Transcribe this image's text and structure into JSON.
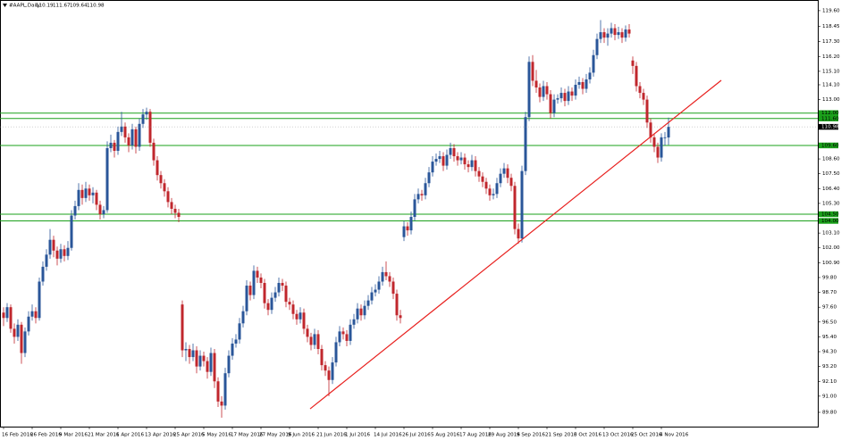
{
  "chart_data": {
    "type": "candlestick",
    "title": "#AAPL,Daily",
    "up_color": "#2a5699",
    "down_color": "#c0272d",
    "hline_color": "#1aa01a",
    "trendline_color": "#e8201e",
    "ylim": [
      88.74,
      120.39
    ],
    "yticks": [
      {
        "value": 119.6,
        "label": "119.60"
      },
      {
        "value": 118.45,
        "label": "118.45"
      },
      {
        "value": 117.3,
        "label": "117.30"
      },
      {
        "value": 116.2,
        "label": "116.20"
      },
      {
        "value": 115.1,
        "label": "115.10"
      },
      {
        "value": 114.1,
        "label": "114.10"
      },
      {
        "value": 113,
        "label": "113.00"
      },
      {
        "value": 108.6,
        "label": "108.60"
      },
      {
        "value": 107.5,
        "label": "107.50"
      },
      {
        "value": 106.4,
        "label": "106.40"
      },
      {
        "value": 105.3,
        "label": "105.30"
      },
      {
        "value": 103.1,
        "label": "103.10"
      },
      {
        "value": 102,
        "label": "102.00"
      },
      {
        "value": 100.9,
        "label": "100.90"
      },
      {
        "value": 99.8,
        "label": "99.80"
      },
      {
        "value": 98.7,
        "label": "98.70"
      },
      {
        "value": 97.6,
        "label": "97.60"
      },
      {
        "value": 96.5,
        "label": "96.50"
      },
      {
        "value": 95.4,
        "label": "95.40"
      },
      {
        "value": 94.3,
        "label": "94.30"
      },
      {
        "value": 93.2,
        "label": "93.20"
      },
      {
        "value": 92.1,
        "label": "92.10"
      },
      {
        "value": 91,
        "label": "91.00"
      },
      {
        "value": 89.8,
        "label": "89.80"
      }
    ],
    "hlines": [
      {
        "value": 112,
        "label": "112.00"
      },
      {
        "value": 111.6,
        "label": "111.60"
      },
      {
        "value": 109.6,
        "label": "109.60"
      },
      {
        "value": 104.5,
        "label": "104.50"
      },
      {
        "value": 104,
        "label": "104.00"
      }
    ],
    "current_price": {
      "value": 110.98,
      "label": "110.98"
    },
    "trendline": {
      "x": [
        85.75,
        200.75
      ],
      "y": [
        90.06,
        114.43
      ]
    },
    "xticks": [
      "16 Feb 2016",
      "26 Feb 2016",
      "9 Mar 2016",
      "21 Mar 2016",
      "1 Apr 2016",
      "13 Apr 2016",
      "25 Apr 2016",
      "5 May 2016",
      "17 May 2016",
      "27 May 2016",
      "9 Jun 2016",
      "21 Jun 2016",
      "1 Jul 2016",
      "14 Jul 2016",
      "26 Jul 2016",
      "5 Aug 2016",
      "17 Aug 2016",
      "29 Aug 2016",
      "9 Sep 2016",
      "21 Sep 2016",
      "3 Oct 2016",
      "13 Oct 2016",
      "25 Oct 2016",
      "4 Nov 2016"
    ],
    "candles": [
      [
        97.2,
        97.6,
        96.2,
        96.8
      ],
      [
        96.8,
        97.9,
        96.5,
        97.6
      ],
      [
        97.6,
        97.8,
        95.7,
        96.0
      ],
      [
        96.0,
        96.4,
        94.9,
        95.4
      ],
      [
        95.4,
        96.7,
        95.1,
        96.3
      ],
      [
        96.3,
        96.5,
        93.4,
        94.2
      ],
      [
        94.2,
        96.1,
        93.9,
        95.8
      ],
      [
        95.8,
        97.3,
        95.5,
        96.9
      ],
      [
        96.9,
        97.8,
        96.6,
        97.3
      ],
      [
        97.3,
        97.6,
        96.4,
        96.8
      ],
      [
        96.8,
        99.8,
        96.6,
        99.5
      ],
      [
        99.5,
        101.0,
        99.2,
        100.6
      ],
      [
        100.6,
        101.9,
        100.3,
        101.5
      ],
      [
        101.5,
        103.4,
        101.2,
        102.6
      ],
      [
        102.6,
        102.9,
        101.3,
        101.8
      ],
      [
        101.8,
        102.1,
        100.7,
        101.2
      ],
      [
        101.2,
        102.3,
        100.9,
        101.9
      ],
      [
        101.9,
        102.2,
        101.0,
        101.4
      ],
      [
        101.4,
        102.5,
        101.1,
        102.0
      ],
      [
        102.0,
        104.8,
        101.8,
        104.4
      ],
      [
        104.4,
        105.5,
        104.1,
        105.1
      ],
      [
        105.1,
        106.8,
        104.8,
        106.3
      ],
      [
        106.3,
        106.7,
        105.2,
        105.7
      ],
      [
        105.7,
        106.9,
        105.4,
        106.4
      ],
      [
        106.4,
        106.7,
        105.5,
        105.9
      ],
      [
        105.9,
        106.5,
        105.3,
        106.1
      ],
      [
        106.1,
        106.3,
        104.8,
        105.2
      ],
      [
        105.2,
        105.5,
        104.1,
        104.5
      ],
      [
        104.5,
        105.1,
        104.2,
        104.8
      ],
      [
        104.8,
        109.9,
        104.6,
        109.4
      ],
      [
        109.4,
        110.4,
        109.1,
        109.8
      ],
      [
        109.8,
        110.0,
        108.7,
        109.2
      ],
      [
        109.2,
        111.0,
        108.9,
        110.6
      ],
      [
        110.6,
        112.1,
        110.3,
        111.0
      ],
      [
        111.0,
        111.3,
        109.8,
        110.2
      ],
      [
        110.2,
        110.5,
        109.1,
        109.6
      ],
      [
        109.6,
        111.2,
        109.3,
        110.8
      ],
      [
        110.8,
        111.0,
        109.0,
        109.5
      ],
      [
        109.5,
        111.6,
        109.2,
        111.2
      ],
      [
        111.2,
        112.3,
        110.9,
        111.9
      ],
      [
        111.9,
        112.4,
        111.5,
        112.1
      ],
      [
        112.1,
        112.3,
        109.5,
        109.8
      ],
      [
        109.8,
        110.1,
        108.1,
        108.5
      ],
      [
        108.5,
        108.8,
        107.0,
        107.4
      ],
      [
        107.4,
        107.7,
        106.4,
        106.8
      ],
      [
        106.8,
        107.1,
        105.8,
        106.2
      ],
      [
        106.2,
        106.5,
        105.0,
        105.4
      ],
      [
        105.4,
        105.7,
        104.5,
        104.9
      ],
      [
        104.9,
        105.2,
        104.2,
        104.6
      ],
      [
        104.6,
        104.9,
        103.9,
        104.3
      ],
      [
        97.8,
        98.1,
        93.9,
        94.4
      ],
      [
        94.4,
        95.0,
        93.6,
        94.5
      ],
      [
        94.5,
        94.8,
        93.4,
        93.9
      ],
      [
        93.9,
        94.9,
        93.6,
        94.4
      ],
      [
        94.4,
        94.7,
        92.7,
        93.2
      ],
      [
        93.2,
        94.4,
        92.9,
        94.0
      ],
      [
        94.0,
        94.3,
        93.2,
        93.6
      ],
      [
        93.6,
        93.9,
        92.3,
        92.8
      ],
      [
        92.8,
        94.6,
        92.5,
        94.2
      ],
      [
        94.2,
        94.5,
        91.6,
        92.1
      ],
      [
        92.1,
        92.4,
        90.2,
        90.6
      ],
      [
        90.6,
        91.0,
        89.4,
        90.3
      ],
      [
        90.3,
        93.1,
        90.0,
        92.7
      ],
      [
        92.7,
        94.4,
        92.4,
        94.0
      ],
      [
        94.0,
        95.3,
        93.7,
        94.9
      ],
      [
        94.9,
        95.6,
        94.6,
        95.2
      ],
      [
        95.2,
        96.8,
        94.9,
        96.4
      ],
      [
        96.4,
        97.7,
        96.1,
        97.3
      ],
      [
        97.3,
        99.6,
        97.0,
        99.2
      ],
      [
        99.2,
        99.5,
        98.1,
        98.5
      ],
      [
        98.5,
        100.7,
        98.2,
        100.3
      ],
      [
        100.3,
        100.6,
        99.4,
        99.8
      ],
      [
        99.8,
        100.1,
        99.0,
        99.4
      ],
      [
        99.4,
        99.7,
        97.5,
        97.9
      ],
      [
        97.9,
        98.2,
        97.0,
        97.4
      ],
      [
        97.4,
        98.7,
        97.1,
        98.3
      ],
      [
        98.3,
        99.1,
        98.0,
        98.7
      ],
      [
        98.7,
        99.8,
        98.4,
        99.4
      ],
      [
        99.4,
        99.7,
        98.8,
        99.2
      ],
      [
        99.2,
        99.5,
        97.6,
        98.0
      ],
      [
        98.0,
        98.3,
        97.4,
        97.8
      ],
      [
        97.8,
        98.1,
        96.7,
        97.1
      ],
      [
        97.1,
        97.4,
        96.3,
        96.7
      ],
      [
        96.7,
        97.6,
        96.4,
        97.2
      ],
      [
        97.2,
        97.5,
        95.6,
        96.0
      ],
      [
        96.0,
        96.3,
        95.0,
        95.4
      ],
      [
        95.4,
        95.7,
        94.4,
        94.8
      ],
      [
        94.8,
        96.0,
        94.5,
        95.6
      ],
      [
        95.6,
        95.9,
        94.1,
        94.5
      ],
      [
        94.5,
        94.8,
        92.9,
        93.3
      ],
      [
        93.3,
        93.6,
        92.5,
        92.9
      ],
      [
        92.9,
        93.2,
        91.0,
        92.2
      ],
      [
        92.2,
        93.9,
        91.9,
        93.5
      ],
      [
        93.5,
        95.4,
        93.2,
        95.0
      ],
      [
        95.0,
        96.2,
        94.7,
        95.8
      ],
      [
        95.8,
        96.1,
        95.2,
        95.6
      ],
      [
        95.6,
        95.9,
        94.7,
        95.1
      ],
      [
        95.1,
        96.7,
        94.8,
        96.3
      ],
      [
        96.3,
        97.1,
        96.0,
        96.7
      ],
      [
        96.7,
        97.9,
        96.4,
        97.5
      ],
      [
        97.5,
        97.8,
        96.6,
        97.0
      ],
      [
        97.0,
        98.1,
        96.7,
        97.7
      ],
      [
        97.7,
        98.5,
        97.4,
        98.1
      ],
      [
        98.1,
        99.1,
        97.8,
        98.7
      ],
      [
        98.7,
        99.3,
        98.4,
        98.9
      ],
      [
        98.9,
        99.9,
        98.6,
        99.5
      ],
      [
        99.5,
        100.6,
        99.2,
        100.2
      ],
      [
        100.2,
        101.0,
        99.6,
        99.9
      ],
      [
        99.9,
        100.2,
        99.1,
        99.5
      ],
      [
        99.5,
        99.8,
        98.2,
        98.6
      ],
      [
        98.6,
        98.9,
        96.6,
        97.0
      ],
      [
        97.0,
        97.4,
        96.4,
        96.8
      ],
      [
        102.8,
        104.0,
        102.5,
        103.6
      ],
      [
        103.6,
        103.9,
        102.9,
        103.3
      ],
      [
        103.3,
        104.7,
        103.0,
        104.3
      ],
      [
        104.3,
        106.0,
        104.0,
        105.6
      ],
      [
        105.6,
        106.4,
        105.3,
        106.0
      ],
      [
        106.0,
        106.3,
        105.5,
        105.9
      ],
      [
        105.9,
        107.2,
        105.6,
        106.8
      ],
      [
        106.8,
        108.0,
        106.5,
        107.6
      ],
      [
        107.6,
        108.8,
        107.3,
        108.4
      ],
      [
        108.4,
        109.0,
        108.1,
        108.6
      ],
      [
        108.6,
        109.2,
        108.3,
        108.8
      ],
      [
        108.8,
        109.1,
        107.7,
        108.1
      ],
      [
        108.1,
        109.3,
        107.8,
        108.9
      ],
      [
        108.9,
        109.8,
        108.6,
        109.4
      ],
      [
        109.4,
        109.7,
        108.4,
        108.8
      ],
      [
        108.8,
        109.1,
        108.1,
        108.5
      ],
      [
        108.5,
        109.1,
        108.2,
        108.7
      ],
      [
        108.7,
        109.0,
        107.8,
        108.2
      ],
      [
        108.2,
        108.5,
        107.6,
        108.0
      ],
      [
        108.0,
        108.9,
        107.7,
        108.5
      ],
      [
        108.5,
        108.8,
        107.3,
        107.7
      ],
      [
        107.7,
        108.0,
        106.9,
        107.3
      ],
      [
        107.3,
        107.6,
        106.5,
        106.9
      ],
      [
        106.9,
        107.2,
        106.0,
        106.4
      ],
      [
        106.4,
        106.7,
        105.5,
        105.9
      ],
      [
        105.9,
        106.4,
        105.6,
        106.0
      ],
      [
        106.0,
        107.2,
        105.7,
        106.8
      ],
      [
        106.8,
        107.9,
        106.5,
        107.5
      ],
      [
        107.5,
        108.3,
        107.2,
        107.9
      ],
      [
        107.9,
        108.2,
        106.8,
        107.2
      ],
      [
        107.2,
        107.5,
        106.2,
        106.6
      ],
      [
        106.6,
        106.9,
        103.0,
        103.4
      ],
      [
        103.4,
        103.8,
        102.3,
        102.7
      ],
      [
        102.7,
        108.1,
        102.4,
        107.7
      ],
      [
        107.7,
        112.1,
        107.4,
        111.7
      ],
      [
        111.7,
        116.2,
        111.4,
        115.8
      ],
      [
        115.8,
        116.3,
        114.0,
        114.4
      ],
      [
        114.4,
        115.2,
        113.5,
        113.9
      ],
      [
        113.9,
        114.2,
        112.8,
        113.2
      ],
      [
        113.2,
        114.4,
        112.9,
        114.0
      ],
      [
        114.0,
        114.3,
        113.0,
        113.4
      ],
      [
        113.4,
        113.7,
        111.6,
        112.0
      ],
      [
        112.0,
        113.4,
        111.7,
        113.0
      ],
      [
        113.0,
        113.4,
        112.7,
        113.1
      ],
      [
        113.1,
        113.9,
        112.8,
        113.5
      ],
      [
        113.5,
        113.8,
        112.5,
        112.9
      ],
      [
        112.9,
        114.0,
        112.6,
        113.6
      ],
      [
        113.6,
        113.9,
        112.9,
        113.3
      ],
      [
        113.3,
        114.5,
        113.0,
        114.1
      ],
      [
        114.1,
        114.7,
        113.8,
        114.3
      ],
      [
        114.3,
        114.6,
        113.4,
        113.8
      ],
      [
        113.8,
        114.9,
        113.5,
        114.5
      ],
      [
        114.5,
        115.4,
        114.2,
        115.0
      ],
      [
        115.0,
        116.7,
        114.7,
        116.3
      ],
      [
        116.3,
        117.9,
        116.0,
        117.5
      ],
      [
        117.5,
        118.9,
        117.2,
        118.0
      ],
      [
        118.0,
        118.3,
        117.2,
        117.6
      ],
      [
        117.6,
        118.3,
        117.0,
        117.9
      ],
      [
        117.9,
        118.7,
        117.6,
        118.3
      ],
      [
        118.3,
        118.6,
        117.4,
        117.8
      ],
      [
        117.8,
        118.4,
        117.5,
        118.0
      ],
      [
        118.0,
        118.3,
        117.2,
        117.6
      ],
      [
        117.6,
        118.5,
        117.3,
        118.2
      ],
      [
        118.2,
        118.6,
        117.6,
        117.9
      ],
      [
        115.9,
        116.2,
        114.9,
        115.5
      ],
      [
        115.5,
        115.8,
        113.6,
        114.0
      ],
      [
        114.0,
        114.3,
        113.1,
        113.5
      ],
      [
        113.5,
        113.8,
        112.6,
        113.0
      ],
      [
        113.0,
        113.3,
        110.9,
        111.3
      ],
      [
        111.3,
        111.6,
        109.8,
        110.2
      ],
      [
        110.2,
        110.5,
        109.1,
        109.5
      ],
      [
        109.5,
        109.8,
        108.3,
        108.7
      ],
      [
        108.7,
        110.5,
        108.4,
        110.2
      ],
      [
        110.2,
        110.6,
        109.6,
        110.2
      ],
      [
        110.19,
        111.67,
        109.64,
        110.98
      ]
    ]
  }
}
